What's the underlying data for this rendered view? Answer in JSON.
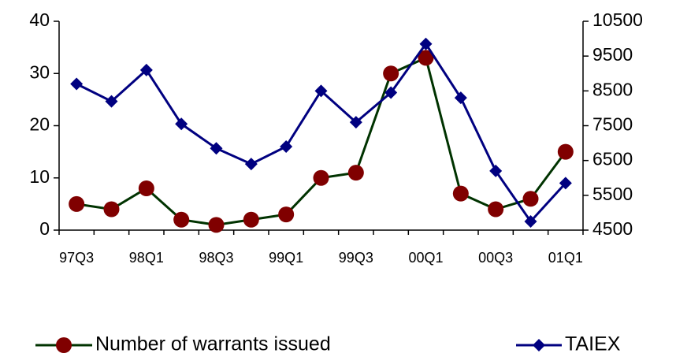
{
  "chart_data": {
    "type": "line",
    "categories": [
      "97Q3",
      null,
      "98Q1",
      null,
      "98Q3",
      null,
      "99Q1",
      null,
      "99Q3",
      null,
      "00Q1",
      null,
      "00Q3",
      null,
      "01Q1"
    ],
    "series": [
      {
        "name": "Number of warrants issued",
        "color": "#003300",
        "marker": "circle",
        "marker_color": "#800000",
        "values": [
          5,
          4,
          8,
          2,
          1,
          2,
          3,
          10,
          11,
          30,
          33,
          7,
          4,
          6,
          15
        ]
      },
      {
        "name": "TAIEX",
        "color": "#000080",
        "marker": "diamond",
        "marker_color": "#000080",
        "axis": "y2",
        "values": [
          8700,
          8200,
          9100,
          7550,
          6850,
          6400,
          6900,
          8500,
          7600,
          8450,
          9850,
          8300,
          6200,
          4750,
          5850
        ]
      }
    ],
    "ylim": [
      0,
      40
    ],
    "yticks": [
      0,
      10,
      20,
      30,
      40
    ],
    "y2lim": [
      4500,
      10500
    ],
    "y2ticks": [
      4500,
      5500,
      6500,
      7500,
      8500,
      9500,
      10500
    ],
    "grid": false,
    "legend": "bottom"
  }
}
